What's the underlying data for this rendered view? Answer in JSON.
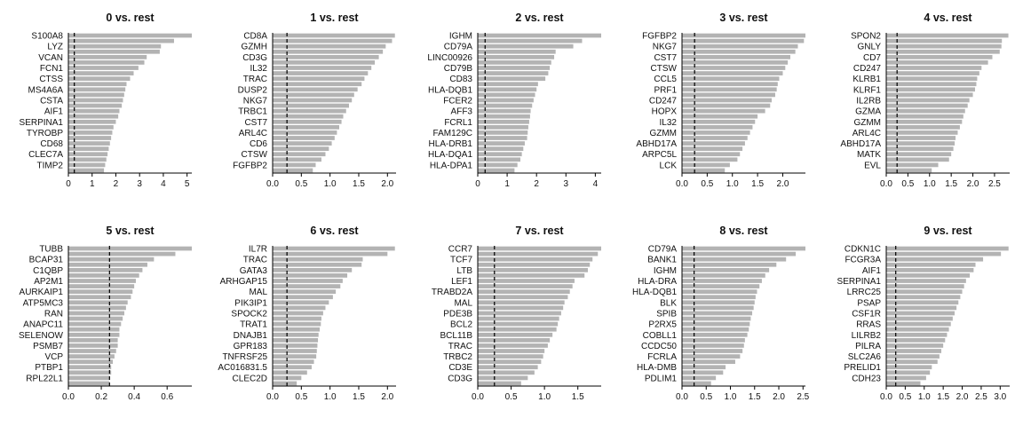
{
  "chart_data": [
    {
      "type": "bar",
      "orientation": "horizontal",
      "title": "0 vs. rest",
      "threshold": 0.25,
      "xlim": [
        0,
        5.2
      ],
      "ticks": [
        0,
        1,
        2,
        3,
        4,
        5
      ],
      "categories": [
        "S100A8",
        "",
        "LYZ",
        "",
        "VCAN",
        "",
        "FCN1",
        "",
        "CTSS",
        "",
        "MS4A6A",
        "",
        "CSTA",
        "",
        "AIF1",
        "",
        "SERPINA1",
        "",
        "TYROBP",
        "",
        "CD68",
        "",
        "CLEC7A",
        "",
        "TIMP2",
        ""
      ],
      "values": [
        5.2,
        4.45,
        3.9,
        3.85,
        3.3,
        3.2,
        2.95,
        2.75,
        2.6,
        2.45,
        2.4,
        2.35,
        2.3,
        2.25,
        2.15,
        2.1,
        2.0,
        1.9,
        1.85,
        1.8,
        1.75,
        1.7,
        1.65,
        1.6,
        1.55,
        1.5
      ]
    },
    {
      "type": "bar",
      "orientation": "horizontal",
      "title": "1 vs. rest",
      "threshold": 0.25,
      "xlim": [
        0,
        2.15
      ],
      "ticks": [
        0,
        0.5,
        1.0,
        1.5,
        2.0
      ],
      "categories": [
        "CD8A",
        "",
        "GZMH",
        "",
        "CD3G",
        "",
        "IL32",
        "",
        "TRAC",
        "",
        "DUSP2",
        "",
        "NKG7",
        "",
        "TRBC1",
        "",
        "CST7",
        "",
        "ARL4C",
        "",
        "CD6",
        "",
        "CTSW",
        "",
        "FGFBP2",
        ""
      ],
      "values": [
        2.13,
        2.08,
        1.97,
        1.92,
        1.85,
        1.78,
        1.72,
        1.66,
        1.6,
        1.55,
        1.48,
        1.42,
        1.38,
        1.33,
        1.28,
        1.23,
        1.2,
        1.16,
        1.12,
        1.08,
        1.03,
        0.98,
        0.92,
        0.85,
        0.75,
        0.7
      ]
    },
    {
      "type": "bar",
      "orientation": "horizontal",
      "title": "2 vs. rest",
      "threshold": 0.25,
      "xlim": [
        0,
        4.2
      ],
      "ticks": [
        0,
        1,
        2,
        3,
        4
      ],
      "categories": [
        "IGHM",
        "",
        "CD79A",
        "",
        "LINC00926",
        "",
        "CD79B",
        "",
        "CD83",
        "",
        "HLA-DQB1",
        "",
        "FCER2",
        "",
        "AFF3",
        "",
        "FCRL1",
        "",
        "FAM129C",
        "",
        "HLA-DRB1",
        "",
        "HLA-DQA1",
        "",
        "HLA-DPA1",
        ""
      ],
      "values": [
        4.2,
        3.55,
        3.25,
        2.65,
        2.6,
        2.5,
        2.45,
        2.4,
        2.3,
        2.05,
        2.0,
        1.95,
        1.9,
        1.85,
        1.8,
        1.78,
        1.75,
        1.72,
        1.7,
        1.68,
        1.6,
        1.55,
        1.5,
        1.45,
        1.35,
        1.25
      ]
    },
    {
      "type": "bar",
      "orientation": "horizontal",
      "title": "3 vs. rest",
      "threshold": 0.25,
      "xlim": [
        0,
        2.45
      ],
      "ticks": [
        0,
        0.5,
        1.0,
        1.5,
        2.0
      ],
      "categories": [
        "FGFBP2",
        "",
        "NKG7",
        "",
        "CST7",
        "",
        "CTSW",
        "",
        "CCL5",
        "",
        "PRF1",
        "",
        "CD247",
        "",
        "HOPX",
        "",
        "IL32",
        "",
        "GZMM",
        "",
        "ABHD17A",
        "",
        "ARPC5L",
        "",
        "LCK",
        ""
      ],
      "values": [
        2.45,
        2.42,
        2.3,
        2.25,
        2.15,
        2.1,
        2.05,
        2.0,
        1.93,
        1.9,
        1.88,
        1.85,
        1.78,
        1.75,
        1.65,
        1.5,
        1.45,
        1.4,
        1.35,
        1.3,
        1.25,
        1.2,
        1.15,
        1.1,
        0.95,
        0.85
      ]
    },
    {
      "type": "bar",
      "orientation": "horizontal",
      "title": "4 vs. rest",
      "threshold": 0.25,
      "xlim": [
        0,
        2.85
      ],
      "ticks": [
        0,
        0.5,
        1.0,
        1.5,
        2.0,
        2.5
      ],
      "categories": [
        "SPON2",
        "",
        "GNLY",
        "",
        "CD7",
        "",
        "CD247",
        "",
        "KLRB1",
        "",
        "KLRF1",
        "",
        "IL2RB",
        "",
        "GZMA",
        "",
        "GZMM",
        "",
        "ARL4C",
        "",
        "ABHD17A",
        "",
        "MATK",
        "",
        "EVL",
        ""
      ],
      "values": [
        2.82,
        2.67,
        2.66,
        2.62,
        2.45,
        2.35,
        2.2,
        2.15,
        2.1,
        2.08,
        2.05,
        2.0,
        1.92,
        1.88,
        1.82,
        1.78,
        1.75,
        1.7,
        1.65,
        1.6,
        1.58,
        1.55,
        1.5,
        1.45,
        1.2,
        1.05
      ]
    },
    {
      "type": "bar",
      "orientation": "horizontal",
      "title": "5 vs. rest",
      "threshold": 0.25,
      "xlim": [
        0,
        0.75
      ],
      "ticks": [
        0.0,
        0.2,
        0.4,
        0.6
      ],
      "categories": [
        "TUBB",
        "",
        "BCAP31",
        "",
        "C1QBP",
        "",
        "AP2M1",
        "",
        "AURKAIP1",
        "",
        "ATP5MC3",
        "",
        "RAN",
        "",
        "ANAPC11",
        "",
        "SELENOW",
        "",
        "PSMB7",
        "",
        "VCP",
        "",
        "PTBP1",
        "",
        "RPL22L1",
        ""
      ],
      "values": [
        0.75,
        0.65,
        0.52,
        0.48,
        0.45,
        0.43,
        0.41,
        0.4,
        0.39,
        0.38,
        0.36,
        0.35,
        0.34,
        0.33,
        0.32,
        0.31,
        0.31,
        0.3,
        0.3,
        0.29,
        0.28,
        0.27,
        0.26,
        0.26,
        0.25,
        0.25
      ]
    },
    {
      "type": "bar",
      "orientation": "horizontal",
      "title": "6 vs. rest",
      "threshold": 0.25,
      "xlim": [
        0,
        2.15
      ],
      "ticks": [
        0,
        0.5,
        1.0,
        1.5,
        2.0
      ],
      "categories": [
        "IL7R",
        "",
        "TRAC",
        "",
        "GATA3",
        "",
        "ARHGAP15",
        "",
        "MAL",
        "",
        "PIK3IP1",
        "",
        "SPOCK2",
        "",
        "TRAT1",
        "",
        "DNAJB1",
        "",
        "GPR183",
        "",
        "TNFRSF25",
        "",
        "AC016831.5",
        "",
        "CLEC2D",
        ""
      ],
      "values": [
        2.13,
        2.0,
        1.57,
        1.55,
        1.38,
        1.3,
        1.22,
        1.18,
        1.1,
        1.05,
        0.98,
        0.92,
        0.88,
        0.85,
        0.84,
        0.82,
        0.8,
        0.79,
        0.78,
        0.77,
        0.76,
        0.72,
        0.68,
        0.6,
        0.5,
        0.42
      ]
    },
    {
      "type": "bar",
      "orientation": "horizontal",
      "title": "7 vs. rest",
      "threshold": 0.25,
      "xlim": [
        0,
        1.85
      ],
      "ticks": [
        0,
        0.5,
        1.0,
        1.5
      ],
      "categories": [
        "CCR7",
        "",
        "TCF7",
        "",
        "LTB",
        "",
        "LEF1",
        "",
        "TRABD2A",
        "",
        "MAL",
        "",
        "PDE3B",
        "",
        "BCL2",
        "",
        "BCL11B",
        "",
        "TRAC",
        "",
        "TRBC2",
        "",
        "CD3E",
        "",
        "CD3G",
        ""
      ],
      "values": [
        1.85,
        1.8,
        1.72,
        1.68,
        1.65,
        1.6,
        1.45,
        1.42,
        1.38,
        1.35,
        1.3,
        1.28,
        1.25,
        1.22,
        1.2,
        1.18,
        1.12,
        1.08,
        1.05,
        1.0,
        0.98,
        0.95,
        0.9,
        0.85,
        0.75,
        0.65
      ]
    },
    {
      "type": "bar",
      "orientation": "horizontal",
      "title": "8 vs. rest",
      "threshold": 0.25,
      "xlim": [
        0,
        2.55
      ],
      "ticks": [
        0,
        0.5,
        1.0,
        1.5,
        2.0,
        2.5
      ],
      "categories": [
        "CD79A",
        "",
        "BANK1",
        "",
        "IGHM",
        "",
        "HLA-DRA",
        "",
        "HLA-DQB1",
        "",
        "BLK",
        "",
        "SPIB",
        "",
        "P2RX5",
        "",
        "COBLL1",
        "",
        "CCDC50",
        "",
        "FCRLA",
        "",
        "HLA-DMB",
        "",
        "PDLIM1",
        ""
      ],
      "values": [
        2.55,
        2.35,
        2.15,
        1.95,
        1.8,
        1.72,
        1.65,
        1.6,
        1.55,
        1.52,
        1.5,
        1.48,
        1.45,
        1.42,
        1.4,
        1.38,
        1.35,
        1.3,
        1.28,
        1.25,
        1.2,
        1.1,
        0.9,
        0.85,
        0.7,
        0.6
      ]
    },
    {
      "type": "bar",
      "orientation": "horizontal",
      "title": "9 vs. rest",
      "threshold": 0.25,
      "xlim": [
        0,
        3.25
      ],
      "ticks": [
        0.0,
        0.5,
        1.0,
        1.5,
        2.0,
        2.5,
        3.0
      ],
      "categories": [
        "CDKN1C",
        "",
        "FCGR3A",
        "",
        "AIF1",
        "",
        "SERPINA1",
        "",
        "LRRC25",
        "",
        "PSAP",
        "",
        "CSF1R",
        "",
        "RRAS",
        "",
        "LILRB2",
        "",
        "PILRA",
        "",
        "SLC2A6",
        "",
        "PRELID1",
        "",
        "CDH23",
        ""
      ],
      "values": [
        3.22,
        3.02,
        2.55,
        2.35,
        2.3,
        2.2,
        2.1,
        2.05,
        2.0,
        1.95,
        1.9,
        1.85,
        1.8,
        1.75,
        1.7,
        1.65,
        1.6,
        1.55,
        1.5,
        1.45,
        1.4,
        1.35,
        1.2,
        1.15,
        1.05,
        0.9
      ]
    }
  ]
}
